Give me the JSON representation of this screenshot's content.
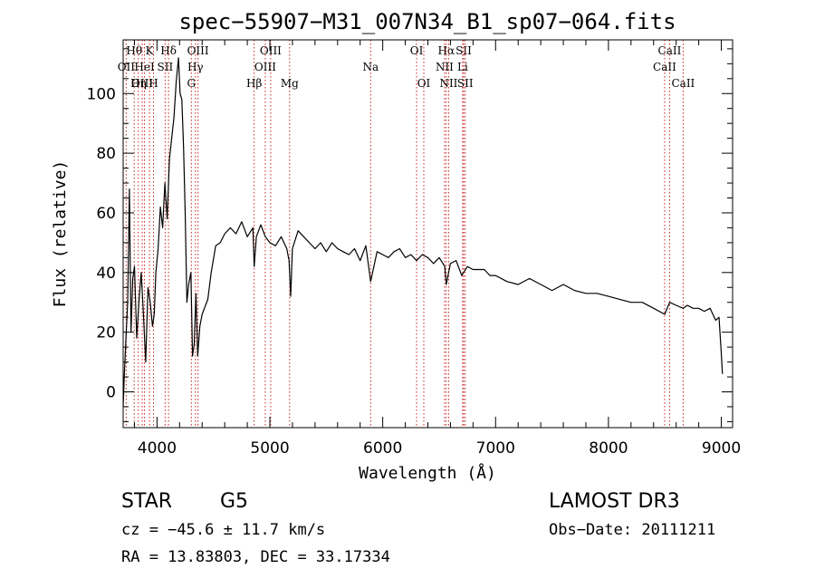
{
  "chart_data": {
    "type": "line",
    "title": "spec−55907−M31_007N34_B1_sp07−064.fits",
    "xlabel": "Wavelength (Å)",
    "ylabel": "Flux (relative)",
    "xlim": [
      3700,
      9100
    ],
    "ylim": [
      -12,
      118
    ],
    "x_ticks": [
      4000,
      5000,
      6000,
      7000,
      8000,
      9000
    ],
    "x_tick_labels": [
      "4000",
      "5000",
      "6000",
      "7000",
      "8000",
      "9000"
    ],
    "y_ticks": [
      0,
      20,
      40,
      60,
      80,
      100
    ],
    "y_tick_labels": [
      "0",
      "20",
      "40",
      "60",
      "80",
      "100"
    ],
    "x_minor_step": 200,
    "y_minor_step": 5,
    "line_color": "#000000",
    "marker_color": "#cc2222",
    "series": [
      {
        "name": "flux",
        "x": [
          3700,
          3710,
          3725,
          3740,
          3755,
          3770,
          3785,
          3800,
          3820,
          3840,
          3860,
          3880,
          3900,
          3920,
          3940,
          3960,
          3975,
          3990,
          4010,
          4030,
          4050,
          4070,
          4090,
          4110,
          4130,
          4150,
          4170,
          4190,
          4205,
          4220,
          4235,
          4250,
          4265,
          4280,
          4300,
          4315,
          4330,
          4345,
          4360,
          4380,
          4400,
          4420,
          4450,
          4480,
          4520,
          4560,
          4600,
          4650,
          4700,
          4750,
          4800,
          4850,
          4861,
          4880,
          4920,
          4960,
          5000,
          5050,
          5100,
          5150,
          5170,
          5184,
          5200,
          5250,
          5300,
          5350,
          5400,
          5450,
          5500,
          5550,
          5600,
          5650,
          5700,
          5750,
          5800,
          5850,
          5893,
          5950,
          6000,
          6050,
          6100,
          6150,
          6200,
          6250,
          6300,
          6350,
          6400,
          6450,
          6500,
          6550,
          6563,
          6600,
          6650,
          6700,
          6750,
          6800,
          6850,
          6900,
          6950,
          7000,
          7100,
          7200,
          7300,
          7400,
          7500,
          7600,
          7700,
          7800,
          7900,
          8000,
          8100,
          8200,
          8300,
          8400,
          8498,
          8542,
          8600,
          8662,
          8700,
          8750,
          8800,
          8850,
          8900,
          8950,
          8980,
          9000,
          9010
        ],
        "y": [
          -5,
          5,
          18,
          30,
          68,
          20,
          38,
          42,
          18,
          30,
          40,
          26,
          10,
          35,
          30,
          22,
          26,
          40,
          48,
          62,
          55,
          70,
          58,
          78,
          85,
          92,
          104,
          112,
          100,
          98,
          82,
          60,
          30,
          36,
          40,
          12,
          16,
          33,
          12,
          22,
          26,
          28,
          31,
          40,
          49,
          50,
          53,
          55,
          53,
          57,
          52,
          55,
          42,
          52,
          56,
          52,
          50,
          49,
          52,
          48,
          44,
          32,
          48,
          54,
          52,
          50,
          48,
          50,
          47,
          50,
          48,
          47,
          46,
          48,
          44,
          49,
          37,
          47,
          46,
          45,
          47,
          48,
          45,
          46,
          44,
          46,
          45,
          43,
          45,
          42,
          36,
          43,
          44,
          39,
          42,
          41,
          41,
          41,
          39,
          39,
          37,
          36,
          38,
          36,
          34,
          36,
          34,
          33,
          33,
          32,
          31,
          30,
          30,
          28,
          26,
          30,
          29,
          28,
          29,
          28,
          28,
          27,
          28,
          24,
          25,
          13,
          6
        ]
      }
    ],
    "line_markers": [
      {
        "label": "Hθ",
        "wavelength": 3798,
        "row": 0
      },
      {
        "label": "OII",
        "wavelength": 3727,
        "row": 1
      },
      {
        "label": "OIII",
        "wavelength": 3869,
        "row": 2
      },
      {
        "label": "K",
        "wavelength": 3934,
        "row": 0
      },
      {
        "label": "HeI",
        "wavelength": 3889,
        "row": 1
      },
      {
        "label": "Hη",
        "wavelength": 3835,
        "row": 2
      },
      {
        "label": "SII",
        "wavelength": 4072,
        "row": 1
      },
      {
        "label": "H",
        "wavelength": 3969,
        "row": 2
      },
      {
        "label": "Hδ",
        "wavelength": 4102,
        "row": 0
      },
      {
        "label": "OIII",
        "wavelength": 4363,
        "row": 0
      },
      {
        "label": "Hγ",
        "wavelength": 4340,
        "row": 1
      },
      {
        "label": "G",
        "wavelength": 4304,
        "row": 2
      },
      {
        "label": "Hβ",
        "wavelength": 4861,
        "row": 2
      },
      {
        "label": "OIII",
        "wavelength": 5007,
        "row": 0
      },
      {
        "label": "OIII",
        "wavelength": 4959,
        "row": 1
      },
      {
        "label": "Mg",
        "wavelength": 5175,
        "row": 2
      },
      {
        "label": "Na",
        "wavelength": 5893,
        "row": 1
      },
      {
        "label": "OI",
        "wavelength": 6300,
        "row": 0
      },
      {
        "label": "OI",
        "wavelength": 6364,
        "row": 2
      },
      {
        "label": "Hα",
        "wavelength": 6563,
        "row": 0
      },
      {
        "label": "NII",
        "wavelength": 6548,
        "row": 1
      },
      {
        "label": "NII",
        "wavelength": 6584,
        "row": 2
      },
      {
        "label": "SII",
        "wavelength": 6717,
        "row": 0
      },
      {
        "label": "Li",
        "wavelength": 6708,
        "row": 1
      },
      {
        "label": "SII",
        "wavelength": 6731,
        "row": 2
      },
      {
        "label": "CaII",
        "wavelength": 8542,
        "row": 0
      },
      {
        "label": "CaII",
        "wavelength": 8498,
        "row": 1
      },
      {
        "label": "CaII",
        "wavelength": 8662,
        "row": 2
      }
    ]
  },
  "info": {
    "object_class": "STAR",
    "subclass": "G5",
    "survey": "LAMOST DR3",
    "redshift_text": "cz = −45.6 ± 11.7 km/s",
    "obs_date_text": "Obs−Date: 20111211",
    "coords_text": "RA =  13.83803, DEC =  33.17334"
  }
}
